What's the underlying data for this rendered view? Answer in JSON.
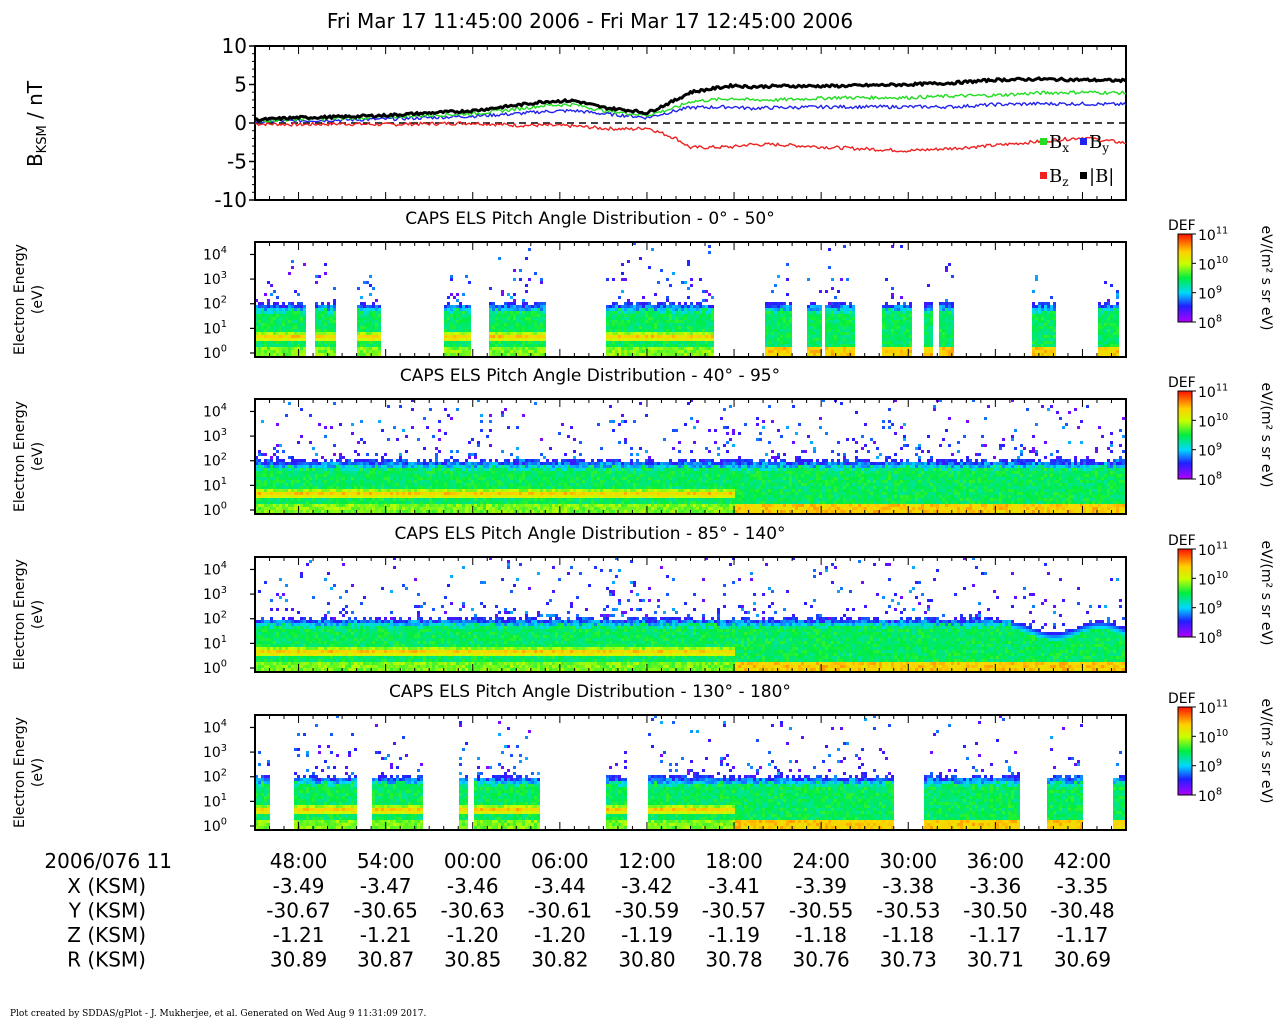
{
  "title": "Fri Mar 17 11:45:00 2006 - Fri Mar 17 12:45:00 2006",
  "footer": "Plot created by SDDAS/gPlot - J. Mukherjee, et al.  Generated on Wed Aug 9 11:31:09 2017.",
  "colors": {
    "bx": "#22dd22",
    "by": "#2222ee",
    "bz": "#ee2222",
    "bmag": "#000000"
  },
  "chart_data": [
    {
      "type": "line",
      "ylabel_main": "B",
      "ylabel_sub": "KSM",
      "ylabel_rest": " / nT",
      "ylim": [
        -10,
        10
      ],
      "y_ticks": [
        "10",
        "5",
        "0",
        "-5",
        "-10"
      ],
      "y_tick_values": [
        10,
        5,
        0,
        -5,
        -10
      ],
      "x_unit": "minutes after 11:45",
      "x": [
        0,
        3,
        6,
        9,
        12,
        15,
        18,
        20,
        22,
        24,
        26,
        27,
        29,
        30,
        33,
        34,
        36,
        40,
        45,
        48,
        51,
        54,
        57,
        60
      ],
      "legend": [
        {
          "key": "bx",
          "main": "B",
          "sub": "x"
        },
        {
          "key": "by",
          "main": "B",
          "sub": "y"
        },
        {
          "key": "bz",
          "main": "B",
          "sub": "z"
        },
        {
          "key": "bmag",
          "main": "|B|",
          "sub": ""
        }
      ],
      "series": [
        {
          "key": "bx",
          "values": [
            0.3,
            0.5,
            0.6,
            0.8,
            1.0,
            1.2,
            1.8,
            2.3,
            2.4,
            1.6,
            1.2,
            1.0,
            2.0,
            2.8,
            3.2,
            3.0,
            3.0,
            3.3,
            3.3,
            3.5,
            3.6,
            3.9,
            4.0,
            3.9
          ]
        },
        {
          "key": "by",
          "values": [
            0.2,
            0.3,
            0.4,
            0.5,
            0.7,
            0.9,
            1.2,
            1.5,
            1.6,
            1.2,
            0.9,
            0.7,
            1.6,
            2.0,
            2.1,
            1.9,
            2.0,
            2.1,
            2.1,
            2.1,
            2.4,
            2.5,
            2.5,
            2.4
          ]
        },
        {
          "key": "bz",
          "values": [
            -0.1,
            -0.2,
            -0.1,
            -0.2,
            -0.1,
            0.0,
            -0.3,
            -0.3,
            -0.4,
            -0.7,
            -0.8,
            -0.6,
            -2.0,
            -3.2,
            -3.1,
            -2.8,
            -2.8,
            -3.2,
            -3.6,
            -3.3,
            -2.9,
            -2.4,
            -1.9,
            -2.6
          ]
        },
        {
          "key": "bmag",
          "values": [
            0.4,
            0.7,
            0.8,
            1.0,
            1.3,
            1.6,
            2.3,
            2.8,
            2.9,
            2.0,
            1.6,
            1.3,
            3.0,
            4.0,
            4.9,
            4.7,
            4.8,
            4.8,
            5.0,
            5.2,
            5.6,
            5.7,
            5.6,
            5.5
          ]
        }
      ]
    },
    {
      "type": "heatmap",
      "title": "CAPS ELS Pitch Angle Distribution - 0° - 50°",
      "ylabel": "Electron Energy",
      "yunit": "(eV)",
      "y_ticks": [
        "4",
        "3",
        "2",
        "1",
        "0"
      ],
      "cbar_label": "DEF",
      "cbar_unit": "eV/(m² s sr eV)",
      "cbar_ticks": [
        "11",
        "10",
        "9",
        "8"
      ],
      "gaps_minutes": [
        [
          3.5,
          4.0
        ],
        [
          5.5,
          7.0
        ],
        [
          8.5,
          13.0
        ],
        [
          14.7,
          16.0
        ],
        [
          20.0,
          24.0
        ],
        [
          31.5,
          35.0
        ],
        [
          36.8,
          38.0
        ],
        [
          39.0,
          39.2
        ],
        [
          41.2,
          43.0
        ],
        [
          45.2,
          46.0
        ],
        [
          46.5,
          47.0
        ],
        [
          48.0,
          53.5
        ],
        [
          55.0,
          58.0
        ],
        [
          59.5,
          60.5
        ]
      ],
      "coverage": "pitch0_50"
    },
    {
      "type": "heatmap",
      "title": "CAPS ELS Pitch Angle Distribution - 40° - 95°",
      "ylabel": "Electron Energy",
      "yunit": "(eV)",
      "y_ticks": [
        "4",
        "3",
        "2",
        "1",
        "0"
      ],
      "cbar_label": "DEF",
      "cbar_unit": "eV/(m² s sr eV)",
      "cbar_ticks": [
        "11",
        "10",
        "9",
        "8"
      ],
      "gaps_minutes": [],
      "coverage": "pitch40_95"
    },
    {
      "type": "heatmap",
      "title": "CAPS ELS Pitch Angle Distribution - 85° - 140°",
      "ylabel": "Electron Energy",
      "yunit": "(eV)",
      "y_ticks": [
        "4",
        "3",
        "2",
        "1",
        "0"
      ],
      "cbar_label": "DEF",
      "cbar_unit": "eV/(m² s sr eV)",
      "cbar_ticks": [
        "11",
        "10",
        "9",
        "8"
      ],
      "gaps_minutes": [],
      "coverage": "pitch85_140"
    },
    {
      "type": "heatmap",
      "title": "CAPS ELS Pitch Angle Distribution - 130° - 180°",
      "ylabel": "Electron Energy",
      "yunit": "(eV)",
      "y_ticks": [
        "4",
        "3",
        "2",
        "1",
        "0"
      ],
      "cbar_label": "DEF",
      "cbar_unit": "eV/(m² s sr eV)",
      "cbar_ticks": [
        "11",
        "10",
        "9",
        "8"
      ],
      "gaps_minutes": [
        [
          1.0,
          2.5
        ],
        [
          7.0,
          8.0
        ],
        [
          11.5,
          14.0
        ],
        [
          14.5,
          15.0
        ],
        [
          19.5,
          24.0
        ],
        [
          25.5,
          27.0
        ],
        [
          44.0,
          46.0
        ],
        [
          52.5,
          54.5
        ],
        [
          57.0,
          59.0
        ]
      ],
      "coverage": "pitch130_180"
    }
  ],
  "ephemeris": {
    "date_label": "2006/076 11",
    "times": [
      "48:00",
      "54:00",
      "00:00",
      "06:00",
      "12:00",
      "18:00",
      "24:00",
      "30:00",
      "36:00",
      "42:00"
    ],
    "time_minutes": [
      3,
      9,
      15,
      21,
      27,
      33,
      39,
      45,
      51,
      57
    ],
    "rows": [
      {
        "label": "X (KSM)",
        "values": [
          "-3.49",
          "-3.47",
          "-3.46",
          "-3.44",
          "-3.42",
          "-3.41",
          "-3.39",
          "-3.38",
          "-3.36",
          "-3.35"
        ]
      },
      {
        "label": "Y (KSM)",
        "values": [
          "-30.67",
          "-30.65",
          "-30.63",
          "-30.61",
          "-30.59",
          "-30.57",
          "-30.55",
          "-30.53",
          "-30.50",
          "-30.48"
        ]
      },
      {
        "label": "Z (KSM)",
        "values": [
          "-1.21",
          "-1.21",
          "-1.20",
          "-1.20",
          "-1.19",
          "-1.19",
          "-1.18",
          "-1.18",
          "-1.17",
          "-1.17"
        ]
      },
      {
        "label": "R (KSM)",
        "values": [
          "30.89",
          "30.87",
          "30.85",
          "30.82",
          "30.80",
          "30.78",
          "30.76",
          "30.73",
          "30.71",
          "30.69"
        ]
      }
    ]
  }
}
